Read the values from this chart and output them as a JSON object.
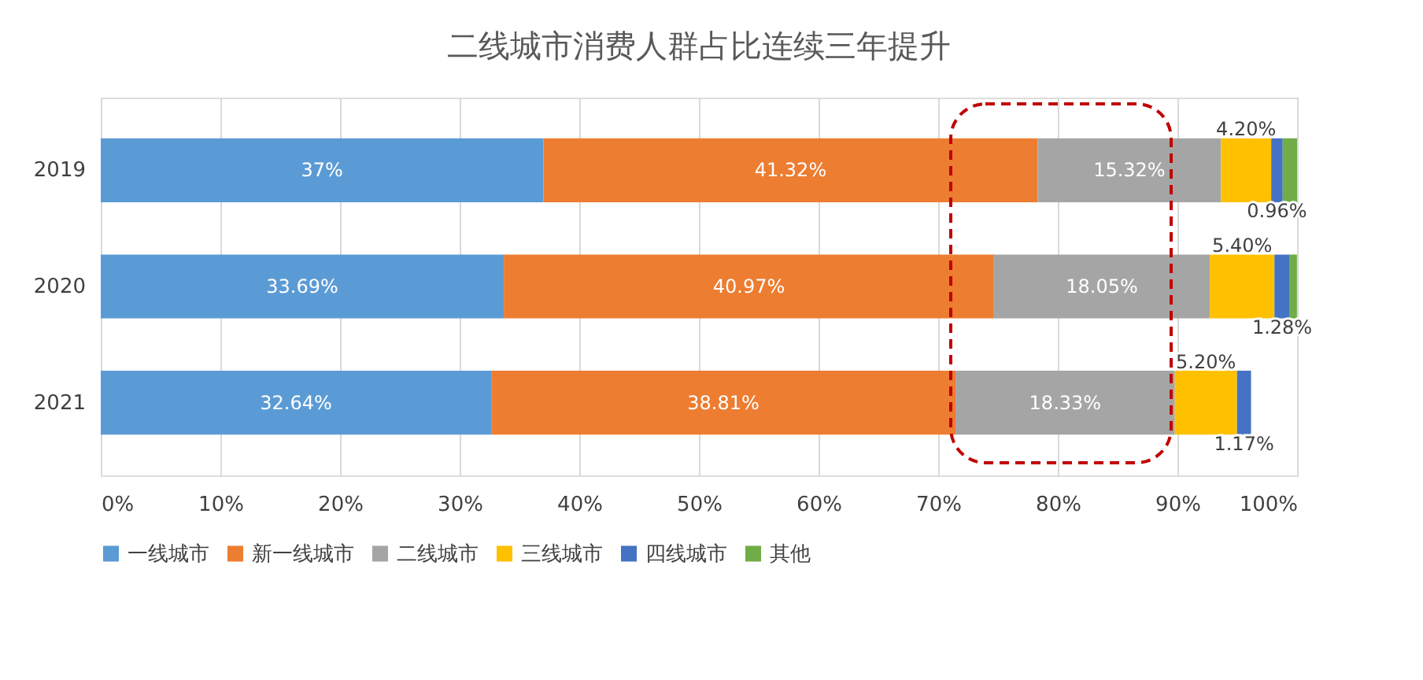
{
  "chart_data": {
    "type": "bar",
    "orientation": "horizontal",
    "stacked": true,
    "title": "二线城市消费人群占比连续三年提升",
    "categories": [
      "2019",
      "2020",
      "2021"
    ],
    "series": [
      {
        "name": "一线城市",
        "color": "#5b9bd5",
        "values": [
          37,
          33.69,
          32.64
        ],
        "value_labels": [
          "37%",
          "33.69%",
          "32.64%"
        ]
      },
      {
        "name": "新一线城市",
        "color": "#ed7d31",
        "values": [
          41.32,
          40.97,
          38.81
        ],
        "value_labels": [
          "41.32%",
          "40.97%",
          "38.81%"
        ]
      },
      {
        "name": "二线城市",
        "color": "#a5a5a5",
        "values": [
          15.32,
          18.05,
          18.33
        ],
        "value_labels": [
          "15.32%",
          "18.05%",
          "18.33%"
        ]
      },
      {
        "name": "三线城市",
        "color": "#ffc000",
        "values": [
          4.2,
          5.4,
          5.2
        ],
        "value_labels": [
          "4.20%",
          "5.40%",
          "5.20%"
        ]
      },
      {
        "name": "四线城市",
        "color": "#4472c4",
        "values": [
          0.96,
          1.28,
          1.17
        ],
        "value_labels": [
          "0.96%",
          "1.28%",
          "1.17%"
        ]
      },
      {
        "name": "其他",
        "color": "#70ad47",
        "values": [
          1.2,
          0.6,
          null
        ],
        "value_labels": [
          null,
          null,
          null
        ]
      }
    ],
    "xlim": [
      0,
      100
    ],
    "xticks": [
      {
        "value": 0,
        "label": "0%"
      },
      {
        "value": 10,
        "label": "10%"
      },
      {
        "value": 20,
        "label": "20%"
      },
      {
        "value": 30,
        "label": "30%"
      },
      {
        "value": 40,
        "label": "40%"
      },
      {
        "value": 50,
        "label": "50%"
      },
      {
        "value": 60,
        "label": "60%"
      },
      {
        "value": 70,
        "label": "70%"
      },
      {
        "value": 80,
        "label": "80%"
      },
      {
        "value": 90,
        "label": "90%"
      },
      {
        "value": 100,
        "label": "100%"
      }
    ],
    "grid": "x",
    "legend": "bottom"
  }
}
